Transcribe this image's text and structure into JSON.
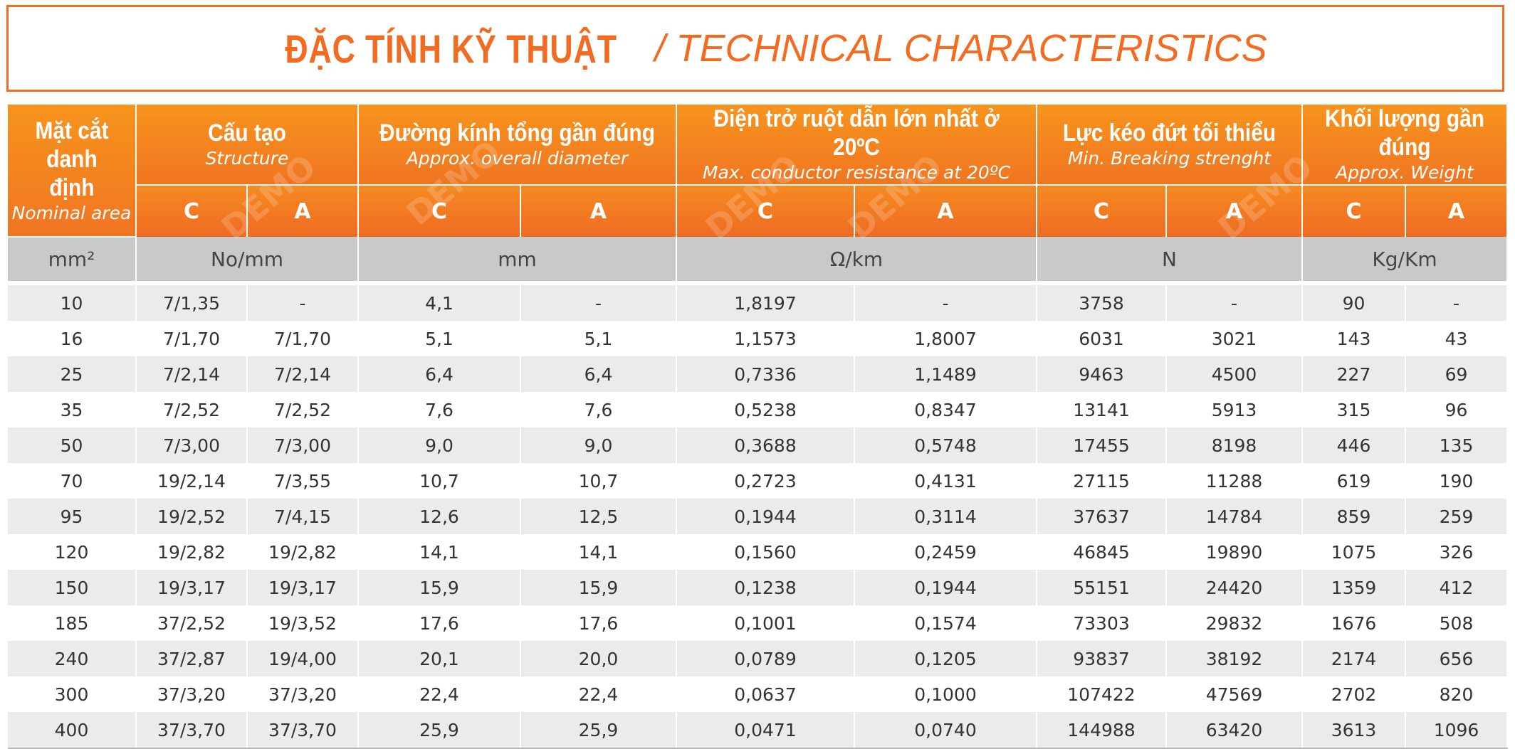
{
  "title": {
    "main": "ĐẶC TÍNH KỸ THUẬT",
    "sub": "/ TECHNICAL CHARACTERISTICS"
  },
  "watermark": "DEMO",
  "table": {
    "first_header": {
      "vi": "Mặt cắt danh định",
      "en": "Nominal area"
    },
    "groups": [
      {
        "vi": "Cấu tạo",
        "en": "Structure"
      },
      {
        "vi": "Đường kính tổng gần đúng",
        "en": "Approx. overall diameter"
      },
      {
        "vi": "Điện trở ruột dẫn lớn nhất ở 20ºC",
        "en": "Max. conductor resistance at 20ºC"
      },
      {
        "vi": "Lực kéo đứt tối thiểu",
        "en": "Min. Breaking strenght"
      },
      {
        "vi": "Khối lượng gần đúng",
        "en": "Approx. Weight"
      }
    ],
    "sub_headers": [
      "C",
      "A",
      "C",
      "A",
      "C",
      "A",
      "C",
      "A",
      "C",
      "A"
    ],
    "units": [
      "mm²",
      "No/mm",
      "mm",
      "Ω/km",
      "N",
      "Kg/Km"
    ],
    "rows": [
      [
        "10",
        "7/1,35",
        "-",
        "4,1",
        "-",
        "1,8197",
        "-",
        "3758",
        "-",
        "90",
        "-"
      ],
      [
        "16",
        "7/1,70",
        "7/1,70",
        "5,1",
        "5,1",
        "1,1573",
        "1,8007",
        "6031",
        "3021",
        "143",
        "43"
      ],
      [
        "25",
        "7/2,14",
        "7/2,14",
        "6,4",
        "6,4",
        "0,7336",
        "1,1489",
        "9463",
        "4500",
        "227",
        "69"
      ],
      [
        "35",
        "7/2,52",
        "7/2,52",
        "7,6",
        "7,6",
        "0,5238",
        "0,8347",
        "13141",
        "5913",
        "315",
        "96"
      ],
      [
        "50",
        "7/3,00",
        "7/3,00",
        "9,0",
        "9,0",
        "0,3688",
        "0,5748",
        "17455",
        "8198",
        "446",
        "135"
      ],
      [
        "70",
        "19/2,14",
        "7/3,55",
        "10,7",
        "10,7",
        "0,2723",
        "0,4131",
        "27115",
        "11288",
        "619",
        "190"
      ],
      [
        "95",
        "19/2,52",
        "7/4,15",
        "12,6",
        "12,5",
        "0,1944",
        "0,3114",
        "37637",
        "14784",
        "859",
        "259"
      ],
      [
        "120",
        "19/2,82",
        "19/2,82",
        "14,1",
        "14,1",
        "0,1560",
        "0,2459",
        "46845",
        "19890",
        "1075",
        "326"
      ],
      [
        "150",
        "19/3,17",
        "19/3,17",
        "15,9",
        "15,9",
        "0,1238",
        "0,1944",
        "55151",
        "24420",
        "1359",
        "412"
      ],
      [
        "185",
        "37/2,52",
        "19/3,52",
        "17,6",
        "17,6",
        "0,1001",
        "0,1574",
        "73303",
        "29832",
        "1676",
        "508"
      ],
      [
        "240",
        "37/2,87",
        "19/4,00",
        "20,1",
        "20,0",
        "0,0789",
        "0,1205",
        "93837",
        "38192",
        "2174",
        "656"
      ],
      [
        "300",
        "37/3,20",
        "37/3,20",
        "22,4",
        "22,4",
        "0,0637",
        "0,1000",
        "107422",
        "47569",
        "2702",
        "820"
      ],
      [
        "400",
        "37/3,70",
        "37/3,70",
        "25,9",
        "25,9",
        "0,0471",
        "0,0740",
        "144988",
        "63420",
        "3613",
        "1096"
      ]
    ]
  }
}
